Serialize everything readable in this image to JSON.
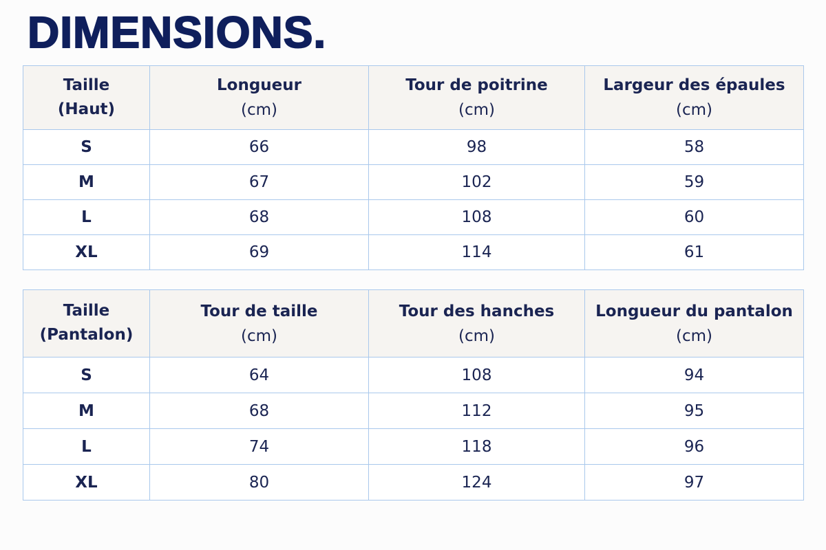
{
  "title": "DIMENSIONS.",
  "tables": [
    {
      "header": [
        [
          "Taille",
          "(Haut)"
        ],
        [
          "Longueur",
          "(cm)"
        ],
        [
          "Tour de poitrine",
          "(cm)"
        ],
        [
          "Largeur des épaules",
          "(cm)"
        ]
      ],
      "rows": [
        [
          "S",
          66,
          98,
          58
        ],
        [
          "M",
          67,
          102,
          59
        ],
        [
          "L",
          68,
          108,
          60
        ],
        [
          "XL",
          69,
          114,
          61
        ]
      ]
    },
    {
      "header": [
        [
          "Taille",
          "(Pantalon)"
        ],
        [
          "Tour de taille",
          "(cm)"
        ],
        [
          "Tour des hanches",
          "(cm)"
        ],
        [
          "Longueur du pantalon",
          "(cm)"
        ]
      ],
      "rows": [
        [
          "S",
          64,
          108,
          94
        ],
        [
          "M",
          68,
          112,
          95
        ],
        [
          "L",
          74,
          118,
          96
        ],
        [
          "XL",
          80,
          124,
          97
        ]
      ]
    }
  ]
}
